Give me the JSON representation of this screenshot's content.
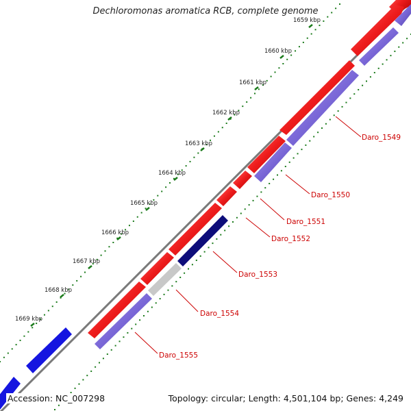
{
  "title": "Dechloromonas aromatica RCB, complete genome",
  "footer": {
    "accession": "Accession: NC_007298",
    "summary": "Topology: circular; Length: 4,501,104 bp; Genes: 4,249"
  },
  "colors": {
    "forward_gene": "#ee1c1c",
    "reverse_gene": "#7b68d8",
    "reverse_highlight": "#0d0d7a",
    "gray_gene": "#c8c8c8",
    "blue_gene": "#1515e0",
    "backbone": "#7a7a7a",
    "ticks": "#1a7a1a",
    "label": "#cc0000"
  },
  "ticks": [
    "1659 kbp",
    "1660 kbp",
    "1661 kbp",
    "1662 kbp",
    "1663 kbp",
    "1664 kbp",
    "1665 kbp",
    "1666 kbp",
    "1667 kbp",
    "1668 kbp",
    "1669 kbp"
  ],
  "genes": [
    "Daro_1549",
    "Daro_1550",
    "Daro_1551",
    "Daro_1552",
    "Daro_1553",
    "Daro_1554",
    "Daro_1555"
  ]
}
